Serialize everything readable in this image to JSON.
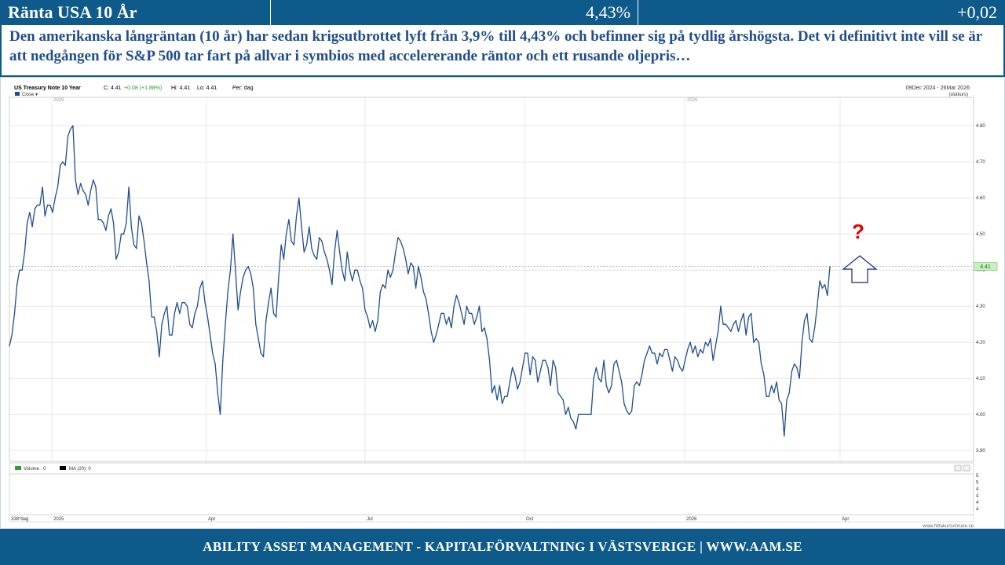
{
  "header": {
    "title": "Ränta USA 10 År",
    "value": "4,43%",
    "change": "+0,02"
  },
  "description": "Den amerikanska långräntan (10 år) har sedan krigsutbrottet lyft från 3,9% till 4,43% och befinner sig på tydlig årshögsta.  Det vi definitivt inte vill se är att nedgången för S&P 500 tar fart på allvar i symbios med accelererande räntor och ett rusande oljepris…",
  "annotation": {
    "question_mark": "?",
    "arrow_color": "#1a237e",
    "question_color": "#e00000"
  },
  "colors": {
    "brand": "#0e5a8a",
    "line": "#1f4e8c",
    "last_badge": "#c8f0c0",
    "volume_legend": "#2ca02c"
  },
  "chart_data": {
    "type": "line",
    "instrument": "US Treasury Note 10 Year",
    "info": {
      "close_label": "C: 4.41",
      "change_label": "+0.08 (+1.88%)",
      "hi_label": "Hi: 4.41",
      "lo_label": "Lo: 4.41",
      "period_label": "Per: dag"
    },
    "date_range": "09Dec 2024 - 26Mar 2026",
    "range_note": "(slutkurs)",
    "series": [
      {
        "name": "Close",
        "values": [
          4.19,
          4.22,
          4.28,
          4.36,
          4.4,
          4.4,
          4.45,
          4.53,
          4.56,
          4.52,
          4.57,
          4.58,
          4.58,
          4.63,
          4.55,
          4.58,
          4.58,
          4.56,
          4.6,
          4.63,
          4.69,
          4.7,
          4.69,
          4.77,
          4.79,
          4.8,
          4.65,
          4.61,
          4.64,
          4.62,
          4.61,
          4.58,
          4.62,
          4.65,
          4.63,
          4.54,
          4.54,
          4.53,
          4.51,
          4.55,
          4.57,
          4.53,
          4.43,
          4.45,
          4.5,
          4.5,
          4.53,
          4.63,
          4.52,
          4.47,
          4.46,
          4.55,
          4.53,
          4.48,
          4.42,
          4.37,
          4.27,
          4.27,
          4.23,
          4.16,
          4.25,
          4.28,
          4.3,
          4.22,
          4.22,
          4.28,
          4.31,
          4.28,
          4.31,
          4.31,
          4.3,
          4.25,
          4.24,
          4.28,
          4.3,
          4.35,
          4.37,
          4.31,
          4.27,
          4.22,
          4.17,
          4.14,
          4.06,
          4.0,
          4.15,
          4.25,
          4.34,
          4.4,
          4.5,
          4.4,
          4.29,
          4.34,
          4.38,
          4.4,
          4.41,
          4.39,
          4.35,
          4.25,
          4.21,
          4.17,
          4.16,
          4.26,
          4.31,
          4.35,
          4.28,
          4.27,
          4.38,
          4.47,
          4.43,
          4.5,
          4.54,
          4.48,
          4.47,
          4.55,
          4.6,
          4.52,
          4.45,
          4.47,
          4.52,
          4.46,
          4.44,
          4.43,
          4.49,
          4.48,
          4.45,
          4.43,
          4.4,
          4.36,
          4.45,
          4.51,
          4.45,
          4.4,
          4.37,
          4.45,
          4.4,
          4.37,
          4.4,
          4.4,
          4.37,
          4.35,
          4.29,
          4.27,
          4.24,
          4.26,
          4.23,
          4.26,
          4.34,
          4.36,
          4.35,
          4.4,
          4.38,
          4.4,
          4.45,
          4.49,
          4.48,
          4.46,
          4.43,
          4.39,
          4.42,
          4.41,
          4.35,
          4.41,
          4.38,
          4.34,
          4.32,
          4.28,
          4.23,
          4.2,
          4.22,
          4.25,
          4.28,
          4.28,
          4.25,
          4.27,
          4.24,
          4.3,
          4.33,
          4.31,
          4.28,
          4.25,
          4.3,
          4.28,
          4.28,
          4.25,
          4.27,
          4.3,
          4.23,
          4.24,
          4.21,
          4.15,
          4.06,
          4.08,
          4.04,
          4.08,
          4.03,
          4.05,
          4.05,
          4.09,
          4.13,
          4.11,
          4.07,
          4.09,
          4.13,
          4.17,
          4.17,
          4.11,
          4.16,
          4.15,
          4.09,
          4.12,
          4.15,
          4.15,
          4.13,
          4.08,
          4.15,
          4.13,
          4.06,
          4.05,
          4.04,
          4.0,
          4.02,
          3.99,
          3.98,
          3.96,
          4.0,
          4.0,
          4.0,
          4.0,
          4.0,
          4.0,
          4.1,
          4.13,
          4.1,
          4.09,
          4.15,
          4.08,
          4.06,
          4.08,
          4.14,
          4.15,
          4.12,
          4.09,
          4.03,
          4.01,
          4.0,
          4.01,
          4.08,
          4.09,
          4.08,
          4.11,
          4.15,
          4.17,
          4.19,
          4.17,
          4.17,
          4.14,
          4.17,
          4.16,
          4.18,
          4.18,
          4.15,
          4.12,
          4.16,
          4.15,
          4.13,
          4.12,
          4.15,
          4.18,
          4.2,
          4.17,
          4.19,
          4.16,
          4.18,
          4.17,
          4.2,
          4.19,
          4.21,
          4.15,
          4.19,
          4.23,
          4.3,
          4.25,
          4.25,
          4.24,
          4.23,
          4.25,
          4.26,
          4.23,
          4.26,
          4.28,
          4.22,
          4.27,
          4.28,
          4.2,
          4.21,
          4.2,
          4.14,
          4.11,
          4.05,
          4.05,
          4.08,
          4.06,
          4.09,
          4.04,
          4.03,
          3.94,
          4.04,
          4.06,
          4.12,
          4.14,
          4.13,
          4.1,
          4.2,
          4.26,
          4.28,
          4.21,
          4.2,
          4.24,
          4.3,
          4.37,
          4.35,
          4.36,
          4.33,
          4.41
        ]
      }
    ],
    "last_value": "4.41",
    "ylim": [
      3.87,
      4.87
    ],
    "y_ticks": [
      "4.80",
      "4.70",
      "4.60",
      "4.50",
      "4.40",
      "4.30",
      "4.20",
      "4.10",
      "4.00",
      "3.90"
    ],
    "year_labels": [
      "2025",
      "2026"
    ],
    "x_labels": [
      "2025",
      "Apr",
      "Jul",
      "Oct",
      "2026",
      "Apr"
    ],
    "volume_panel": {
      "volume_label": "Volume : 0",
      "ma_label": "MA (20): 0",
      "ticks": [
        "5",
        "5",
        "4",
        "4",
        "4",
        "4"
      ]
    },
    "bars_label": "338*dag",
    "source": "www.hittakursvinnare.se",
    "grid": true
  },
  "footer": {
    "text": "ABILITY ASSET MANAGEMENT -  KAPITALFÖRVALTNING I VÄSTSVERIGE   |   WWW.AAM.SE"
  }
}
